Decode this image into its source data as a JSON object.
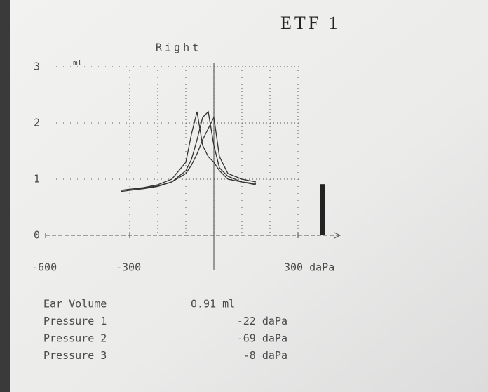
{
  "chart_data": {
    "type": "line",
    "title": "ETF 1",
    "subtitle": "Right",
    "y_label": "ml",
    "x": [
      -330,
      -300,
      -250,
      -200,
      -150,
      -100,
      -80,
      -60,
      -40,
      -20,
      0,
      20,
      50,
      100,
      150
    ],
    "series": [
      {
        "color": "#333333",
        "values": [
          0.78,
          0.8,
          0.83,
          0.87,
          0.95,
          1.15,
          1.35,
          1.7,
          2.1,
          2.2,
          1.6,
          1.2,
          1.05,
          0.95,
          0.9
        ]
      },
      {
        "color": "#333333",
        "values": [
          0.8,
          0.82,
          0.85,
          0.9,
          1.0,
          1.3,
          1.8,
          2.2,
          1.6,
          1.4,
          1.3,
          1.15,
          1.0,
          0.95,
          0.92
        ]
      },
      {
        "color": "#333333",
        "values": [
          0.8,
          0.82,
          0.84,
          0.88,
          0.95,
          1.1,
          1.25,
          1.45,
          1.7,
          1.9,
          2.1,
          1.4,
          1.1,
          1.0,
          0.95
        ]
      }
    ],
    "xlim": [
      -600,
      450
    ],
    "ylim": [
      0,
      3
    ],
    "xticks": [
      -600,
      -300,
      {
        "value": 300,
        "label": "300 daPa"
      }
    ],
    "yticks": [
      0,
      1,
      2,
      3
    ],
    "grid": true,
    "measurements": [
      {
        "label": "Ear Volume",
        "value": 0.91,
        "value_label": "0.91 ml"
      },
      {
        "label": "Pressure 1",
        "value": -22,
        "value_label": "-22 daPa"
      },
      {
        "label": "Pressure 2",
        "value": -69,
        "value_label": "-69 daPa"
      },
      {
        "label": "Pressure 3",
        "value": -8,
        "value_label": "-8 daPa"
      }
    ]
  }
}
